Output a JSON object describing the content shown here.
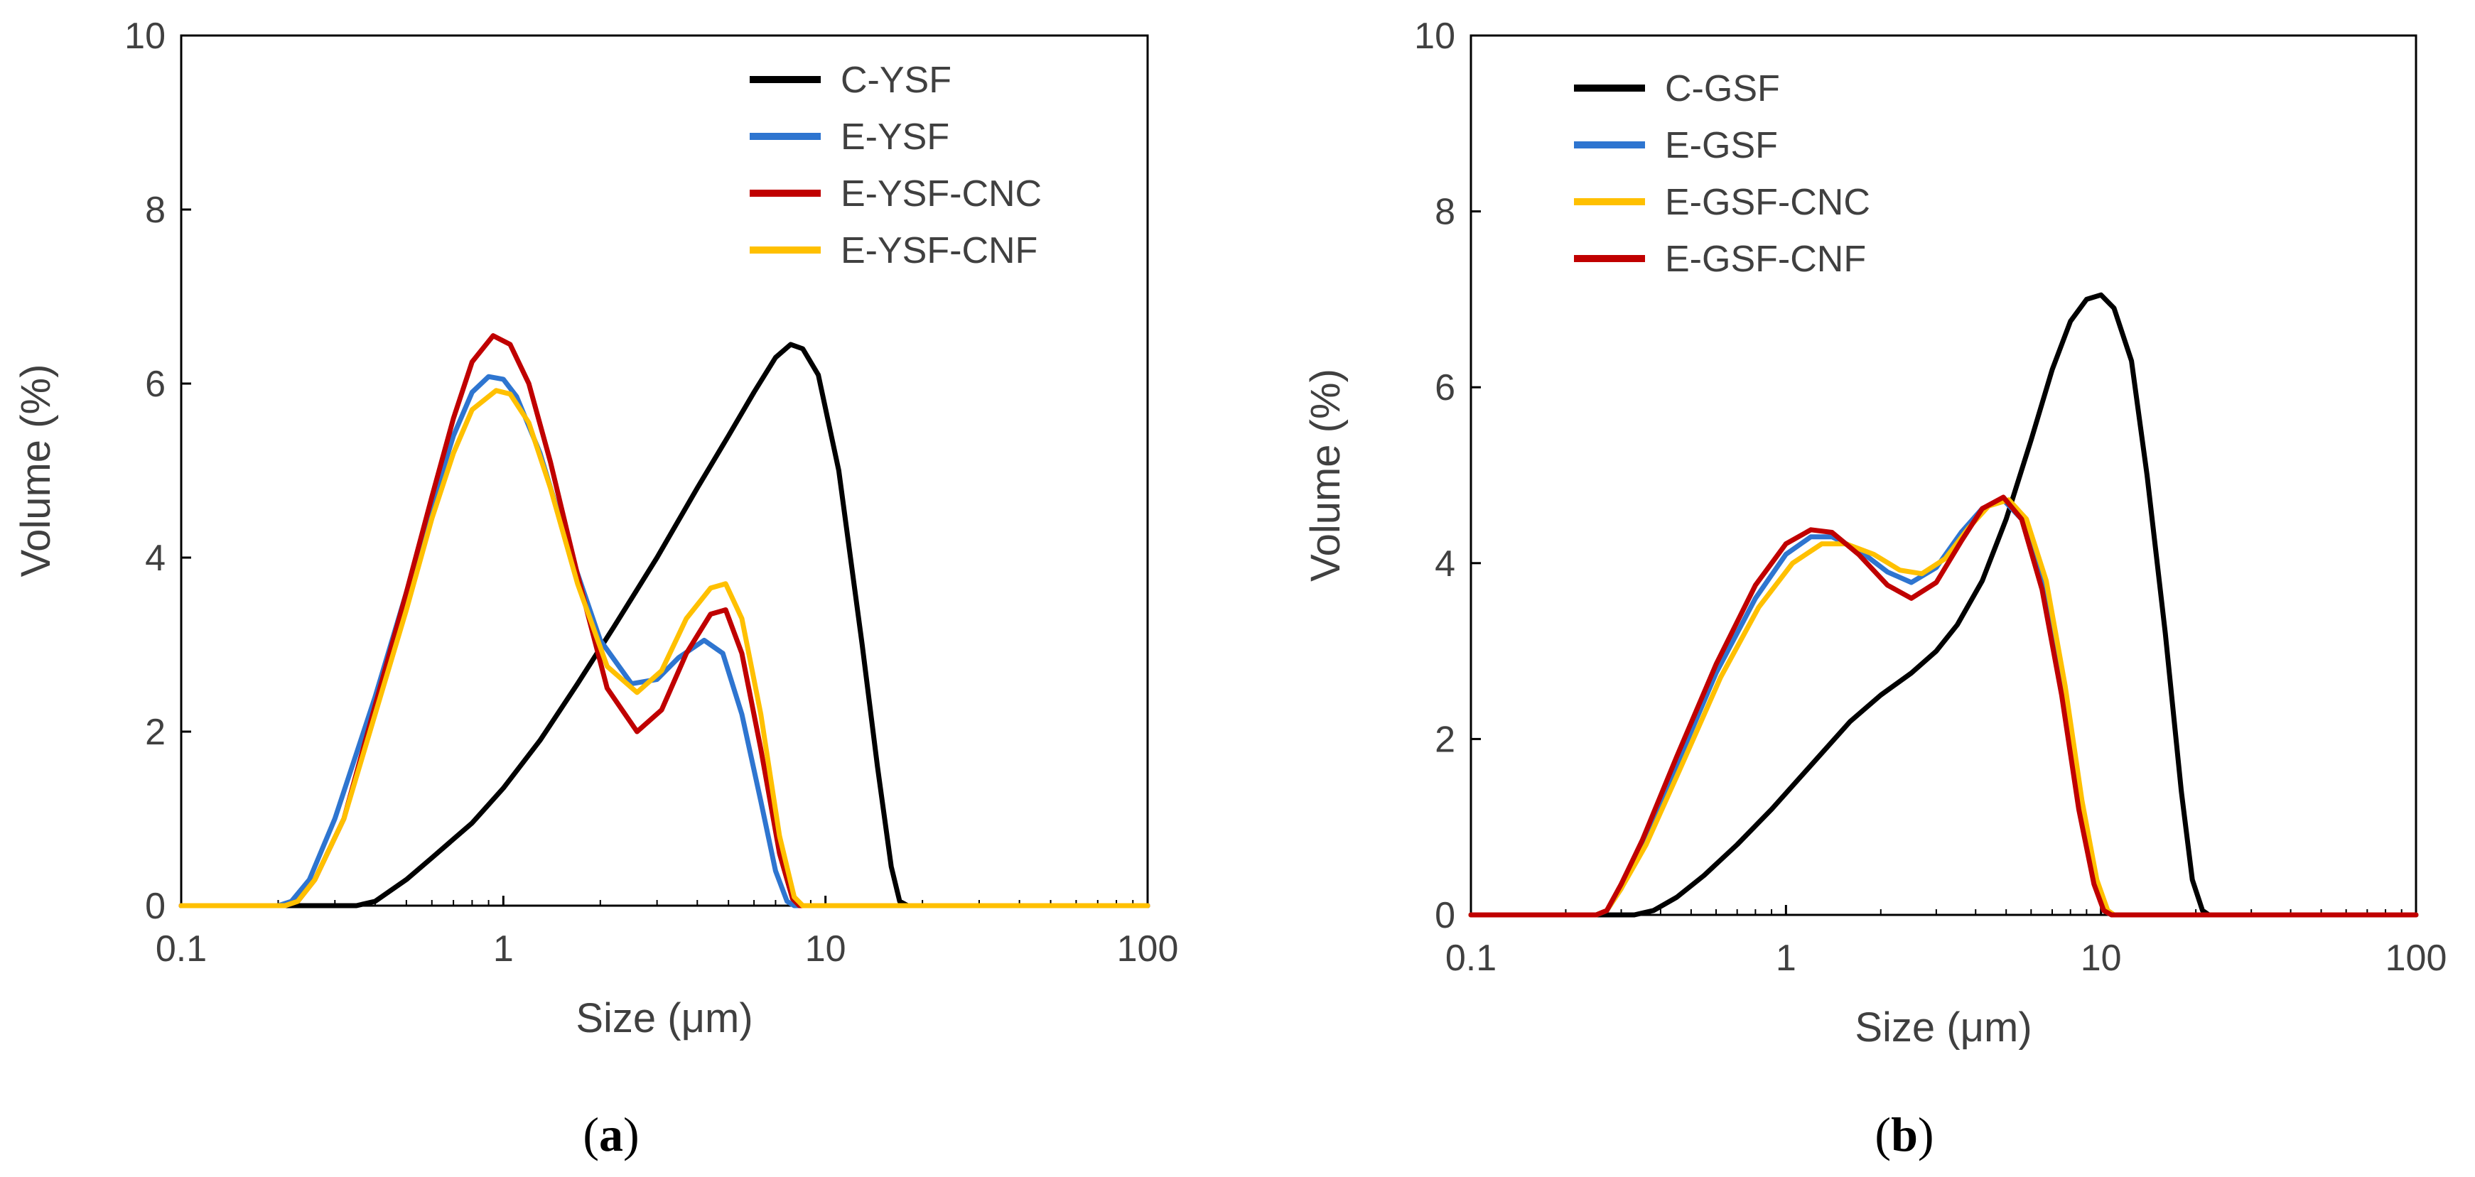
{
  "chart_data": [
    {
      "type": "line",
      "caption": "a",
      "xlabel": "Size (μm)",
      "ylabel": "Volume (%)",
      "xscale": "log",
      "xlim": [
        0.1,
        100
      ],
      "ylim": [
        0,
        10
      ],
      "xticks": [
        0.1,
        1,
        10,
        100
      ],
      "xtick_labels": [
        "0.1",
        "1",
        "10",
        "100"
      ],
      "yticks": [
        0,
        2,
        4,
        6,
        8,
        10
      ],
      "ytick_labels": [
        "0",
        "2",
        "4",
        "6",
        "8",
        "10"
      ],
      "grid": false,
      "legend_position": "top-right",
      "series": [
        {
          "name": "C-YSF",
          "color": "#000000",
          "points": [
            [
              0.1,
              0
            ],
            [
              0.35,
              0
            ],
            [
              0.4,
              0.05
            ],
            [
              0.5,
              0.3
            ],
            [
              0.6,
              0.55
            ],
            [
              0.8,
              0.95
            ],
            [
              1,
              1.35
            ],
            [
              1.3,
              1.9
            ],
            [
              1.7,
              2.55
            ],
            [
              2.2,
              3.2
            ],
            [
              3,
              4.0
            ],
            [
              4,
              4.8
            ],
            [
              5,
              5.4
            ],
            [
              6,
              5.9
            ],
            [
              7,
              6.3
            ],
            [
              7.8,
              6.45
            ],
            [
              8.5,
              6.4
            ],
            [
              9.5,
              6.1
            ],
            [
              11,
              5.0
            ],
            [
              13,
              3.0
            ],
            [
              14.5,
              1.6
            ],
            [
              16,
              0.45
            ],
            [
              17,
              0.05
            ],
            [
              18,
              0
            ],
            [
              100,
              0
            ]
          ]
        },
        {
          "name": "E-YSF",
          "color": "#2E75D0",
          "points": [
            [
              0.1,
              0
            ],
            [
              0.2,
              0
            ],
            [
              0.22,
              0.05
            ],
            [
              0.25,
              0.3
            ],
            [
              0.3,
              1.0
            ],
            [
              0.4,
              2.4
            ],
            [
              0.5,
              3.6
            ],
            [
              0.6,
              4.6
            ],
            [
              0.7,
              5.4
            ],
            [
              0.8,
              5.9
            ],
            [
              0.9,
              6.08
            ],
            [
              1.0,
              6.05
            ],
            [
              1.1,
              5.85
            ],
            [
              1.3,
              5.2
            ],
            [
              1.6,
              4.1
            ],
            [
              2.0,
              3.05
            ],
            [
              2.5,
              2.55
            ],
            [
              3.0,
              2.6
            ],
            [
              3.5,
              2.85
            ],
            [
              4.2,
              3.05
            ],
            [
              4.8,
              2.9
            ],
            [
              5.5,
              2.2
            ],
            [
              6.3,
              1.2
            ],
            [
              7.0,
              0.4
            ],
            [
              7.6,
              0.05
            ],
            [
              8,
              0
            ],
            [
              100,
              0
            ]
          ]
        },
        {
          "name": "E-YSF-CNC",
          "color": "#C00000",
          "points": [
            [
              0.1,
              0
            ],
            [
              0.21,
              0
            ],
            [
              0.23,
              0.05
            ],
            [
              0.26,
              0.3
            ],
            [
              0.32,
              1.0
            ],
            [
              0.4,
              2.3
            ],
            [
              0.5,
              3.6
            ],
            [
              0.6,
              4.7
            ],
            [
              0.7,
              5.6
            ],
            [
              0.8,
              6.25
            ],
            [
              0.93,
              6.55
            ],
            [
              1.05,
              6.45
            ],
            [
              1.2,
              6.0
            ],
            [
              1.4,
              5.1
            ],
            [
              1.7,
              3.8
            ],
            [
              2.1,
              2.5
            ],
            [
              2.6,
              2.0
            ],
            [
              3.1,
              2.25
            ],
            [
              3.7,
              2.9
            ],
            [
              4.4,
              3.35
            ],
            [
              4.9,
              3.4
            ],
            [
              5.5,
              2.9
            ],
            [
              6.3,
              1.8
            ],
            [
              7.2,
              0.6
            ],
            [
              7.9,
              0.08
            ],
            [
              8.3,
              0
            ],
            [
              100,
              0
            ]
          ]
        },
        {
          "name": "E-YSF-CNF",
          "color": "#FFC000",
          "points": [
            [
              0.1,
              0
            ],
            [
              0.21,
              0
            ],
            [
              0.23,
              0.05
            ],
            [
              0.26,
              0.3
            ],
            [
              0.32,
              1.0
            ],
            [
              0.4,
              2.2
            ],
            [
              0.5,
              3.4
            ],
            [
              0.6,
              4.45
            ],
            [
              0.7,
              5.2
            ],
            [
              0.8,
              5.7
            ],
            [
              0.95,
              5.92
            ],
            [
              1.05,
              5.88
            ],
            [
              1.2,
              5.55
            ],
            [
              1.4,
              4.8
            ],
            [
              1.7,
              3.7
            ],
            [
              2.1,
              2.75
            ],
            [
              2.6,
              2.45
            ],
            [
              3.1,
              2.7
            ],
            [
              3.7,
              3.3
            ],
            [
              4.4,
              3.65
            ],
            [
              4.9,
              3.7
            ],
            [
              5.5,
              3.3
            ],
            [
              6.3,
              2.2
            ],
            [
              7.2,
              0.8
            ],
            [
              8.0,
              0.1
            ],
            [
              8.5,
              0
            ],
            [
              100,
              0
            ]
          ]
        }
      ]
    },
    {
      "type": "line",
      "caption": "b",
      "xlabel": "Size (μm)",
      "ylabel": "Volume (%)",
      "xscale": "log",
      "xlim": [
        0.1,
        100
      ],
      "ylim": [
        0,
        10
      ],
      "xticks": [
        0.1,
        1,
        10,
        100
      ],
      "xtick_labels": [
        "0.1",
        "1",
        "10",
        "100"
      ],
      "yticks": [
        0,
        2,
        4,
        6,
        8,
        10
      ],
      "ytick_labels": [
        "0",
        "2",
        "4",
        "6",
        "8",
        "10"
      ],
      "grid": false,
      "legend_position": "top-left",
      "series": [
        {
          "name": "C-GSF",
          "color": "#000000",
          "points": [
            [
              0.1,
              0
            ],
            [
              0.33,
              0
            ],
            [
              0.38,
              0.05
            ],
            [
              0.45,
              0.2
            ],
            [
              0.55,
              0.45
            ],
            [
              0.7,
              0.8
            ],
            [
              0.9,
              1.2
            ],
            [
              1.2,
              1.7
            ],
            [
              1.6,
              2.2
            ],
            [
              2,
              2.5
            ],
            [
              2.5,
              2.75
            ],
            [
              3,
              3.0
            ],
            [
              3.5,
              3.3
            ],
            [
              4.2,
              3.8
            ],
            [
              5,
              4.5
            ],
            [
              6,
              5.4
            ],
            [
              7,
              6.2
            ],
            [
              8,
              6.75
            ],
            [
              9,
              7.0
            ],
            [
              10,
              7.05
            ],
            [
              11,
              6.9
            ],
            [
              12.5,
              6.3
            ],
            [
              14,
              5.0
            ],
            [
              16,
              3.2
            ],
            [
              18,
              1.4
            ],
            [
              19.5,
              0.4
            ],
            [
              21,
              0.05
            ],
            [
              22,
              0
            ],
            [
              100,
              0
            ]
          ]
        },
        {
          "name": "E-GSF",
          "color": "#2E75D0",
          "points": [
            [
              0.1,
              0
            ],
            [
              0.25,
              0
            ],
            [
              0.27,
              0.05
            ],
            [
              0.3,
              0.3
            ],
            [
              0.35,
              0.8
            ],
            [
              0.45,
              1.7
            ],
            [
              0.6,
              2.75
            ],
            [
              0.8,
              3.6
            ],
            [
              1.0,
              4.1
            ],
            [
              1.2,
              4.3
            ],
            [
              1.4,
              4.3
            ],
            [
              1.7,
              4.15
            ],
            [
              2.1,
              3.9
            ],
            [
              2.5,
              3.78
            ],
            [
              3.0,
              3.95
            ],
            [
              3.6,
              4.35
            ],
            [
              4.2,
              4.62
            ],
            [
              4.9,
              4.72
            ],
            [
              5.6,
              4.5
            ],
            [
              6.5,
              3.8
            ],
            [
              7.5,
              2.6
            ],
            [
              8.5,
              1.3
            ],
            [
              9.5,
              0.4
            ],
            [
              10.2,
              0.05
            ],
            [
              10.8,
              0
            ],
            [
              100,
              0
            ]
          ]
        },
        {
          "name": "E-GSF-CNC",
          "color": "#FFC000",
          "points": [
            [
              0.1,
              0
            ],
            [
              0.25,
              0
            ],
            [
              0.27,
              0.05
            ],
            [
              0.3,
              0.3
            ],
            [
              0.36,
              0.8
            ],
            [
              0.46,
              1.65
            ],
            [
              0.62,
              2.7
            ],
            [
              0.82,
              3.5
            ],
            [
              1.05,
              4.0
            ],
            [
              1.3,
              4.22
            ],
            [
              1.55,
              4.22
            ],
            [
              1.9,
              4.1
            ],
            [
              2.3,
              3.92
            ],
            [
              2.7,
              3.88
            ],
            [
              3.2,
              4.05
            ],
            [
              3.8,
              4.4
            ],
            [
              4.4,
              4.65
            ],
            [
              5.1,
              4.72
            ],
            [
              5.8,
              4.5
            ],
            [
              6.7,
              3.8
            ],
            [
              7.7,
              2.6
            ],
            [
              8.7,
              1.3
            ],
            [
              9.7,
              0.4
            ],
            [
              10.5,
              0.05
            ],
            [
              11,
              0
            ],
            [
              100,
              0
            ]
          ]
        },
        {
          "name": "E-GSF-CNF",
          "color": "#C00000",
          "points": [
            [
              0.1,
              0
            ],
            [
              0.25,
              0
            ],
            [
              0.27,
              0.05
            ],
            [
              0.3,
              0.35
            ],
            [
              0.35,
              0.85
            ],
            [
              0.45,
              1.8
            ],
            [
              0.6,
              2.85
            ],
            [
              0.8,
              3.75
            ],
            [
              1.0,
              4.22
            ],
            [
              1.2,
              4.38
            ],
            [
              1.4,
              4.35
            ],
            [
              1.7,
              4.1
            ],
            [
              2.1,
              3.75
            ],
            [
              2.5,
              3.6
            ],
            [
              3.0,
              3.78
            ],
            [
              3.6,
              4.25
            ],
            [
              4.2,
              4.62
            ],
            [
              4.9,
              4.75
            ],
            [
              5.6,
              4.5
            ],
            [
              6.5,
              3.7
            ],
            [
              7.5,
              2.5
            ],
            [
              8.5,
              1.2
            ],
            [
              9.5,
              0.35
            ],
            [
              10.2,
              0.05
            ],
            [
              10.8,
              0
            ],
            [
              100,
              0
            ]
          ]
        }
      ]
    }
  ]
}
